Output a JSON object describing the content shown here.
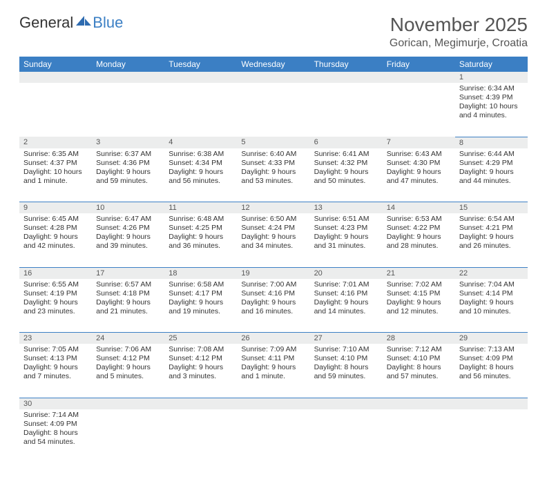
{
  "brand": {
    "part1": "General",
    "part2": "Blue"
  },
  "title": "November 2025",
  "location": "Gorican, Megimurje, Croatia",
  "colors": {
    "header_bg": "#3b7fc4",
    "header_text": "#ffffff",
    "daynum_bg": "#eceded",
    "text": "#333333",
    "rule": "#3b7fc4"
  },
  "weekdays": [
    "Sunday",
    "Monday",
    "Tuesday",
    "Wednesday",
    "Thursday",
    "Friday",
    "Saturday"
  ],
  "weeks": [
    [
      null,
      null,
      null,
      null,
      null,
      null,
      {
        "n": "1",
        "sr": "Sunrise: 6:34 AM",
        "ss": "Sunset: 4:39 PM",
        "d1": "Daylight: 10 hours",
        "d2": "and 4 minutes."
      }
    ],
    [
      {
        "n": "2",
        "sr": "Sunrise: 6:35 AM",
        "ss": "Sunset: 4:37 PM",
        "d1": "Daylight: 10 hours",
        "d2": "and 1 minute."
      },
      {
        "n": "3",
        "sr": "Sunrise: 6:37 AM",
        "ss": "Sunset: 4:36 PM",
        "d1": "Daylight: 9 hours",
        "d2": "and 59 minutes."
      },
      {
        "n": "4",
        "sr": "Sunrise: 6:38 AM",
        "ss": "Sunset: 4:34 PM",
        "d1": "Daylight: 9 hours",
        "d2": "and 56 minutes."
      },
      {
        "n": "5",
        "sr": "Sunrise: 6:40 AM",
        "ss": "Sunset: 4:33 PM",
        "d1": "Daylight: 9 hours",
        "d2": "and 53 minutes."
      },
      {
        "n": "6",
        "sr": "Sunrise: 6:41 AM",
        "ss": "Sunset: 4:32 PM",
        "d1": "Daylight: 9 hours",
        "d2": "and 50 minutes."
      },
      {
        "n": "7",
        "sr": "Sunrise: 6:43 AM",
        "ss": "Sunset: 4:30 PM",
        "d1": "Daylight: 9 hours",
        "d2": "and 47 minutes."
      },
      {
        "n": "8",
        "sr": "Sunrise: 6:44 AM",
        "ss": "Sunset: 4:29 PM",
        "d1": "Daylight: 9 hours",
        "d2": "and 44 minutes."
      }
    ],
    [
      {
        "n": "9",
        "sr": "Sunrise: 6:45 AM",
        "ss": "Sunset: 4:28 PM",
        "d1": "Daylight: 9 hours",
        "d2": "and 42 minutes."
      },
      {
        "n": "10",
        "sr": "Sunrise: 6:47 AM",
        "ss": "Sunset: 4:26 PM",
        "d1": "Daylight: 9 hours",
        "d2": "and 39 minutes."
      },
      {
        "n": "11",
        "sr": "Sunrise: 6:48 AM",
        "ss": "Sunset: 4:25 PM",
        "d1": "Daylight: 9 hours",
        "d2": "and 36 minutes."
      },
      {
        "n": "12",
        "sr": "Sunrise: 6:50 AM",
        "ss": "Sunset: 4:24 PM",
        "d1": "Daylight: 9 hours",
        "d2": "and 34 minutes."
      },
      {
        "n": "13",
        "sr": "Sunrise: 6:51 AM",
        "ss": "Sunset: 4:23 PM",
        "d1": "Daylight: 9 hours",
        "d2": "and 31 minutes."
      },
      {
        "n": "14",
        "sr": "Sunrise: 6:53 AM",
        "ss": "Sunset: 4:22 PM",
        "d1": "Daylight: 9 hours",
        "d2": "and 28 minutes."
      },
      {
        "n": "15",
        "sr": "Sunrise: 6:54 AM",
        "ss": "Sunset: 4:21 PM",
        "d1": "Daylight: 9 hours",
        "d2": "and 26 minutes."
      }
    ],
    [
      {
        "n": "16",
        "sr": "Sunrise: 6:55 AM",
        "ss": "Sunset: 4:19 PM",
        "d1": "Daylight: 9 hours",
        "d2": "and 23 minutes."
      },
      {
        "n": "17",
        "sr": "Sunrise: 6:57 AM",
        "ss": "Sunset: 4:18 PM",
        "d1": "Daylight: 9 hours",
        "d2": "and 21 minutes."
      },
      {
        "n": "18",
        "sr": "Sunrise: 6:58 AM",
        "ss": "Sunset: 4:17 PM",
        "d1": "Daylight: 9 hours",
        "d2": "and 19 minutes."
      },
      {
        "n": "19",
        "sr": "Sunrise: 7:00 AM",
        "ss": "Sunset: 4:16 PM",
        "d1": "Daylight: 9 hours",
        "d2": "and 16 minutes."
      },
      {
        "n": "20",
        "sr": "Sunrise: 7:01 AM",
        "ss": "Sunset: 4:16 PM",
        "d1": "Daylight: 9 hours",
        "d2": "and 14 minutes."
      },
      {
        "n": "21",
        "sr": "Sunrise: 7:02 AM",
        "ss": "Sunset: 4:15 PM",
        "d1": "Daylight: 9 hours",
        "d2": "and 12 minutes."
      },
      {
        "n": "22",
        "sr": "Sunrise: 7:04 AM",
        "ss": "Sunset: 4:14 PM",
        "d1": "Daylight: 9 hours",
        "d2": "and 10 minutes."
      }
    ],
    [
      {
        "n": "23",
        "sr": "Sunrise: 7:05 AM",
        "ss": "Sunset: 4:13 PM",
        "d1": "Daylight: 9 hours",
        "d2": "and 7 minutes."
      },
      {
        "n": "24",
        "sr": "Sunrise: 7:06 AM",
        "ss": "Sunset: 4:12 PM",
        "d1": "Daylight: 9 hours",
        "d2": "and 5 minutes."
      },
      {
        "n": "25",
        "sr": "Sunrise: 7:08 AM",
        "ss": "Sunset: 4:12 PM",
        "d1": "Daylight: 9 hours",
        "d2": "and 3 minutes."
      },
      {
        "n": "26",
        "sr": "Sunrise: 7:09 AM",
        "ss": "Sunset: 4:11 PM",
        "d1": "Daylight: 9 hours",
        "d2": "and 1 minute."
      },
      {
        "n": "27",
        "sr": "Sunrise: 7:10 AM",
        "ss": "Sunset: 4:10 PM",
        "d1": "Daylight: 8 hours",
        "d2": "and 59 minutes."
      },
      {
        "n": "28",
        "sr": "Sunrise: 7:12 AM",
        "ss": "Sunset: 4:10 PM",
        "d1": "Daylight: 8 hours",
        "d2": "and 57 minutes."
      },
      {
        "n": "29",
        "sr": "Sunrise: 7:13 AM",
        "ss": "Sunset: 4:09 PM",
        "d1": "Daylight: 8 hours",
        "d2": "and 56 minutes."
      }
    ],
    [
      {
        "n": "30",
        "sr": "Sunrise: 7:14 AM",
        "ss": "Sunset: 4:09 PM",
        "d1": "Daylight: 8 hours",
        "d2": "and 54 minutes."
      },
      null,
      null,
      null,
      null,
      null,
      null
    ]
  ]
}
